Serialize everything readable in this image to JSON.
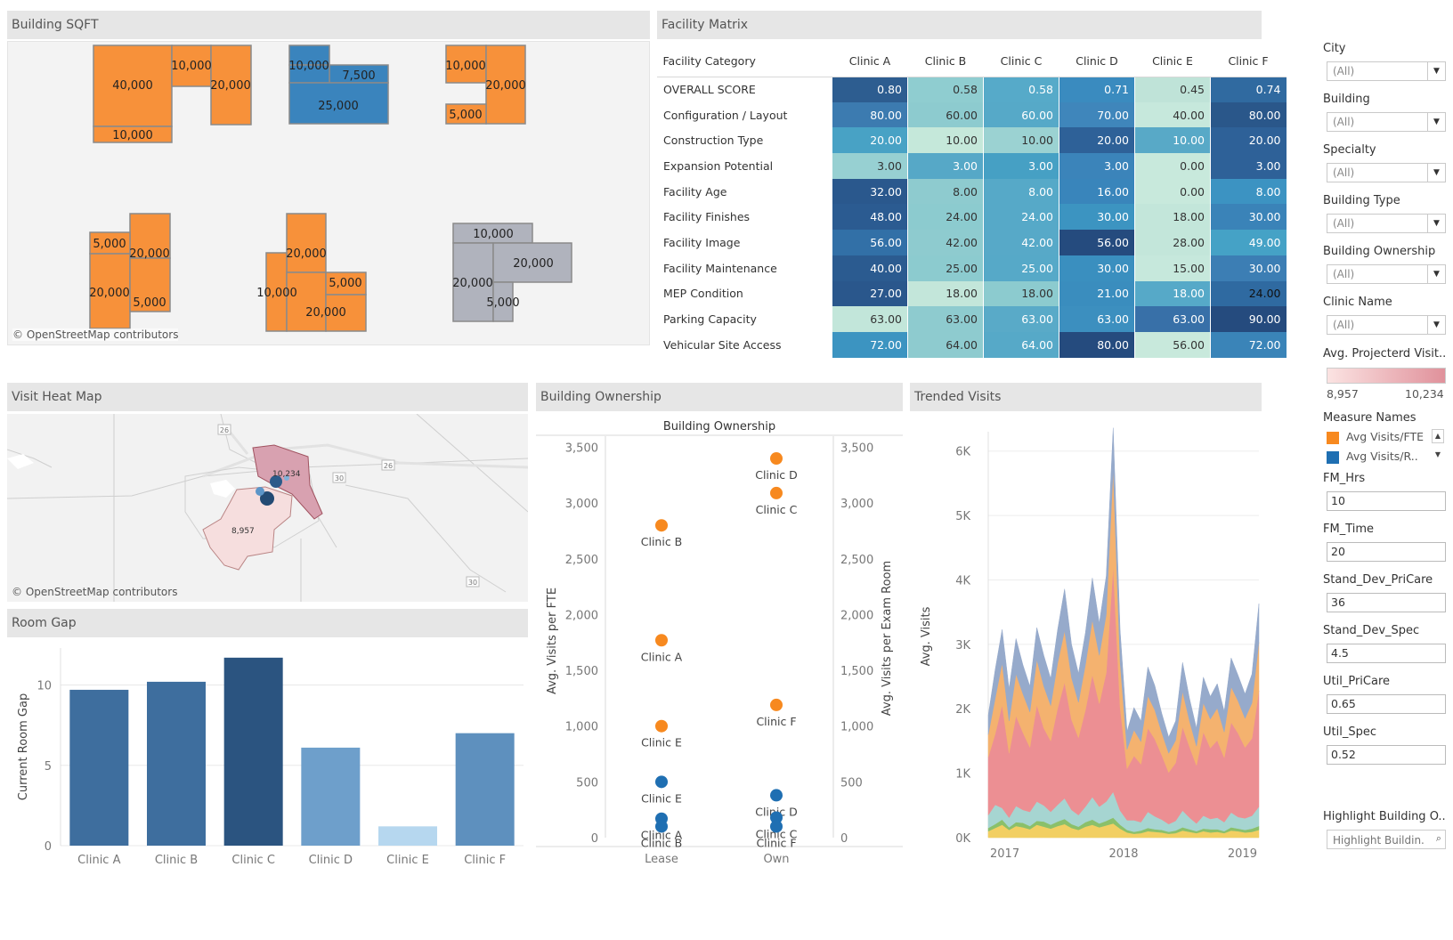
{
  "panels": {
    "building_sqft": "Building SQFT",
    "facility_matrix": "Facility Matrix",
    "visit_heat_map": "Visit Heat Map",
    "building_ownership": "Building Ownership",
    "trended_visits": "Trended Visits",
    "room_gap": "Room Gap"
  },
  "attribution": "© OpenStreetMap contributors",
  "sqft_labels": {
    "b1": [
      "40,000",
      "10,000",
      "20,000",
      "10,000"
    ],
    "b2": [
      "10,000",
      "7,500",
      "25,000"
    ],
    "b3": [
      "10,000",
      "20,000",
      "5,000"
    ],
    "b4": [
      "5,000",
      "20,000",
      "20,000",
      "5,000"
    ],
    "b5": [
      "20,000",
      "10,000",
      "5,000",
      "20,000"
    ],
    "b6": [
      "10,000",
      "20,000",
      "20,000",
      "5,000"
    ]
  },
  "colors": {
    "orange": "#f7913a",
    "blue": "#3a84bd",
    "gray": "#b0b3bd",
    "header_gray": "#e6e6e6",
    "room_gap_bars": [
      "#3e6e9e",
      "#3e6e9e",
      "#2b5480",
      "#6e9fcb",
      "#b6d7ef",
      "#5e90be"
    ]
  },
  "matrix": {
    "category_header": "Facility Category",
    "clinics": [
      "Clinic A",
      "Clinic B",
      "Clinic C",
      "Clinic D",
      "Clinic E",
      "Clinic F"
    ],
    "rows": [
      {
        "category": "OVERALL SCORE",
        "values": [
          "0.80",
          "0.58",
          "0.58",
          "0.71",
          "0.45",
          "0.74"
        ],
        "bg": [
          "#2d5d90",
          "#8fcdd0",
          "#56aac9",
          "#3a8bbf",
          "#bfe3d8",
          "#306aa0"
        ]
      },
      {
        "category": "Configuration / Layout",
        "values": [
          "80.00",
          "60.00",
          "60.00",
          "70.00",
          "40.00",
          "80.00"
        ],
        "bg": [
          "#3c7bb0",
          "#8dcbcf",
          "#56a9c8",
          "#3f86bb",
          "#c6e8dc",
          "#2a578a"
        ]
      },
      {
        "category": "Construction Type",
        "values": [
          "20.00",
          "10.00",
          "10.00",
          "20.00",
          "10.00",
          "20.00"
        ],
        "bg": [
          "#48a2c5",
          "#c5e8da",
          "#9bd2d2",
          "#2e6198",
          "#58a9c7",
          "#2e6198"
        ]
      },
      {
        "category": "Expansion Potential",
        "values": [
          "3.00",
          "3.00",
          "3.00",
          "3.00",
          "0.00",
          "3.00"
        ],
        "bg": [
          "#97d0d2",
          "#56a8c7",
          "#46a0c4",
          "#3b84ba",
          "#c8e9dc",
          "#2e6198"
        ]
      },
      {
        "category": "Facility Age",
        "values": [
          "32.00",
          "8.00",
          "8.00",
          "16.00",
          "0.00",
          "8.00"
        ],
        "bg": [
          "#2a588d",
          "#8ecbcf",
          "#56a9c8",
          "#3985bb",
          "#c8e9dc",
          "#3c93c2"
        ]
      },
      {
        "category": "Facility Finishes",
        "values": [
          "48.00",
          "24.00",
          "24.00",
          "30.00",
          "18.00",
          "30.00"
        ],
        "bg": [
          "#2b5b91",
          "#8ccbcf",
          "#56a9c8",
          "#3c94c1",
          "#c3e6da",
          "#3a83b8"
        ]
      },
      {
        "category": "Facility Image",
        "values": [
          "56.00",
          "42.00",
          "42.00",
          "56.00",
          "28.00",
          "49.00"
        ],
        "bg": [
          "#3270a7",
          "#8ecbcf",
          "#57a9c8",
          "#254b7e",
          "#c3e6da",
          "#45a2c6"
        ]
      },
      {
        "category": "Facility Maintenance",
        "values": [
          "40.00",
          "25.00",
          "25.00",
          "30.00",
          "15.00",
          "30.00"
        ],
        "bg": [
          "#2b5b90",
          "#8ccbcf",
          "#56a9c8",
          "#3a8fbf",
          "#c6e8dc",
          "#3c7eb4"
        ]
      },
      {
        "category": "MEP Condition",
        "values": [
          "27.00",
          "18.00",
          "18.00",
          "21.00",
          "18.00",
          "24.00"
        ],
        "bg": [
          "#2a578c",
          "#c3e6da",
          "#8ccbcf",
          "#3a8dbe",
          "#56a9c8",
          "#2f6aa1"
        ]
      },
      {
        "category": "Parking Capacity",
        "values": [
          "63.00",
          "63.00",
          "63.00",
          "63.00",
          "63.00",
          "90.00"
        ],
        "bg": [
          "#c2e6da",
          "#8ecbcf",
          "#59aac8",
          "#3c8fbf",
          "#3870a8",
          "#254b7e"
        ]
      },
      {
        "category": "Vehicular Site Access",
        "values": [
          "72.00",
          "64.00",
          "64.00",
          "80.00",
          "56.00",
          "72.00"
        ],
        "bg": [
          "#3c94c1",
          "#8ecbcf",
          "#56a9c8",
          "#254b7e",
          "#c8e9dc",
          "#3a84b8"
        ]
      }
    ]
  },
  "filters": [
    {
      "label": "City",
      "value": "(All)"
    },
    {
      "label": "Building",
      "value": "(All)"
    },
    {
      "label": "Specialty",
      "value": "(All)"
    },
    {
      "label": "Building Type",
      "value": "(All)"
    },
    {
      "label": "Building Ownership",
      "value": "(All)"
    },
    {
      "label": "Clinic Name",
      "value": "(All)"
    }
  ],
  "legend": {
    "projected_title": "Avg. Projecterd Visit..",
    "projected_min": "8,957",
    "projected_max": "10,234",
    "measure_names_title": "Measure Names",
    "measures": [
      {
        "label": "Avg Visits/FTE",
        "color": "#f7891f"
      },
      {
        "label": "Avg Visits/R..",
        "color": "#1f6fb2"
      }
    ]
  },
  "params": [
    {
      "label": "FM_Hrs",
      "value": "10"
    },
    {
      "label": "FM_Time",
      "value": "20"
    },
    {
      "label": "Stand_Dev_PriCare",
      "value": "36"
    },
    {
      "label": "Stand_Dev_Spec",
      "value": "4.5"
    },
    {
      "label": "Util_PriCare",
      "value": "0.65"
    },
    {
      "label": "Util_Spec",
      "value": "0.52"
    }
  ],
  "highlight": {
    "label": "Highlight Building O..",
    "placeholder": "Highlight Buildin..."
  },
  "map": {
    "route_labels": [
      "26",
      "26",
      "30",
      "30"
    ],
    "region_values": [
      "10,234",
      "8,957"
    ]
  },
  "chart_data": [
    {
      "type": "bar",
      "title": "",
      "xlabel": "",
      "ylabel": "Current Room Gap",
      "categories": [
        "Clinic A",
        "Clinic B",
        "Clinic C",
        "Clinic D",
        "Clinic E",
        "Clinic F"
      ],
      "values": [
        9.7,
        10.2,
        11.7,
        6.1,
        1.2,
        7.0
      ],
      "ylim": [
        0,
        12.3
      ],
      "yticks": [
        "0",
        "5",
        "10"
      ]
    },
    {
      "type": "scatter",
      "title": "Building Ownership",
      "ylabel": "Avg. Visits per FTE",
      "ylabel_right": "Avg. Visits per Exam Room",
      "categories": [
        "Lease",
        "Own"
      ],
      "ylim": [
        0,
        3600
      ],
      "yticks": [
        "0",
        "500",
        "1,000",
        "1,500",
        "2,000",
        "2,500",
        "3,000",
        "3,500"
      ],
      "series": [
        {
          "name": "Avg Visits/FTE",
          "points": [
            {
              "x": "Lease",
              "y": 2800,
              "label": "Clinic B"
            },
            {
              "x": "Lease",
              "y": 1770,
              "label": "Clinic A"
            },
            {
              "x": "Lease",
              "y": 1000,
              "label": "Clinic E"
            },
            {
              "x": "Own",
              "y": 3400,
              "label": "Clinic D"
            },
            {
              "x": "Own",
              "y": 3090,
              "label": "Clinic C"
            },
            {
              "x": "Own",
              "y": 1190,
              "label": "Clinic F"
            }
          ]
        },
        {
          "name": "Avg Visits/R..",
          "points": [
            {
              "x": "Lease",
              "y": 500,
              "label": "Clinic E"
            },
            {
              "x": "Lease",
              "y": 170,
              "label": "Clinic A"
            },
            {
              "x": "Lease",
              "y": 100,
              "label": "Clinic B"
            },
            {
              "x": "Own",
              "y": 380,
              "label": "Clinic D"
            },
            {
              "x": "Own",
              "y": 180,
              "label": "Clinic C"
            },
            {
              "x": "Own",
              "y": 100,
              "label": "Clinic F"
            }
          ]
        }
      ]
    },
    {
      "type": "area",
      "title": "",
      "ylabel": "Avg. Visits",
      "xticks": [
        "2017",
        "2018",
        "2019"
      ],
      "yticks": [
        "0K",
        "1K",
        "2K",
        "3K",
        "4K",
        "5K",
        "6K"
      ],
      "ylim": [
        0,
        6300
      ],
      "x_count": 40,
      "stack_order": [
        "yellow",
        "green",
        "teal",
        "pink",
        "orange",
        "blue"
      ],
      "series": [
        {
          "name": "yellow",
          "color": "#f2cf62",
          "values": [
            100,
            150,
            200,
            120,
            180,
            160,
            130,
            200,
            170,
            140,
            180,
            210,
            150,
            120,
            170,
            200,
            160,
            190,
            220,
            140,
            80,
            60,
            70,
            100,
            90,
            80,
            60,
            70,
            110,
            90,
            70,
            100,
            80,
            90,
            70,
            110,
            100,
            80,
            90,
            120
          ]
        },
        {
          "name": "green",
          "color": "#8ac06a",
          "values": [
            50,
            60,
            80,
            40,
            60,
            70,
            50,
            60,
            80,
            60,
            70,
            80,
            60,
            50,
            70,
            80,
            60,
            70,
            90,
            60,
            40,
            30,
            40,
            50,
            40,
            40,
            30,
            40,
            50,
            40,
            30,
            40,
            50,
            40,
            30,
            50,
            40,
            40,
            50,
            60
          ]
        },
        {
          "name": "teal",
          "color": "#a6d5d1",
          "values": [
            200,
            300,
            180,
            150,
            250,
            200,
            220,
            300,
            250,
            200,
            260,
            320,
            220,
            180,
            240,
            350,
            260,
            300,
            400,
            220,
            150,
            180,
            130,
            250,
            200,
            160,
            120,
            150,
            260,
            180,
            120,
            200,
            160,
            180,
            140,
            230,
            180,
            180,
            200,
            300
          ]
        },
        {
          "name": "pink",
          "color": "#ec8f93",
          "values": [
            900,
            1100,
            1600,
            1000,
            1400,
            1200,
            1000,
            1500,
            1200,
            1100,
            1500,
            1800,
            1400,
            1200,
            1500,
            1900,
            1600,
            2000,
            3500,
            1600,
            800,
            1000,
            900,
            1300,
            1200,
            1000,
            800,
            900,
            1300,
            1100,
            900,
            1300,
            1100,
            1200,
            1000,
            1400,
            1300,
            1100,
            1200,
            1800
          ]
        },
        {
          "name": "orange",
          "color": "#f4b26f",
          "values": [
            350,
            550,
            650,
            500,
            650,
            600,
            550,
            700,
            650,
            550,
            700,
            800,
            650,
            550,
            700,
            850,
            750,
            900,
            1500,
            700,
            300,
            400,
            350,
            500,
            450,
            350,
            300,
            350,
            550,
            400,
            300,
            450,
            450,
            500,
            400,
            550,
            500,
            450,
            550,
            750
          ]
        },
        {
          "name": "blue",
          "color": "#96aacb",
          "values": [
            300,
            450,
            520,
            500,
            550,
            450,
            400,
            500,
            480,
            420,
            520,
            650,
            520,
            450,
            500,
            650,
            500,
            600,
            650,
            500,
            280,
            350,
            320,
            450,
            380,
            300,
            250,
            300,
            450,
            350,
            280,
            400,
            350,
            380,
            320,
            450,
            400,
            380,
            450,
            600
          ]
        }
      ]
    }
  ]
}
